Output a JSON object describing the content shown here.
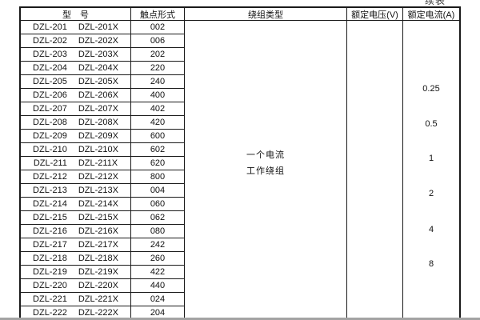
{
  "continued_label": "续表",
  "table": {
    "columns": [
      "型　号",
      "触点形式",
      "绕组类型",
      "额定电压(V)",
      "额定电流(A)"
    ],
    "winding_type_lines": [
      "一个电流",
      "工作绕组"
    ],
    "rated_voltage_value": "",
    "rated_current_values": [
      "0.25",
      "0.5",
      "1",
      "2",
      "4",
      "8"
    ],
    "rows": [
      {
        "model": "DZL-201",
        "model_x": "DZL-201X",
        "contact": "002"
      },
      {
        "model": "DZL-202",
        "model_x": "DZL-202X",
        "contact": "006"
      },
      {
        "model": "DZL-203",
        "model_x": "DZL-203X",
        "contact": "202"
      },
      {
        "model": "DZL-204",
        "model_x": "DZL-204X",
        "contact": "220"
      },
      {
        "model": "DZL-205",
        "model_x": "DZL-205X",
        "contact": "240"
      },
      {
        "model": "DZL-206",
        "model_x": "DZL-206X",
        "contact": "400"
      },
      {
        "model": "DZL-207",
        "model_x": "DZL-207X",
        "contact": "402"
      },
      {
        "model": "DZL-208",
        "model_x": "DZL-208X",
        "contact": "420"
      },
      {
        "model": "DZL-209",
        "model_x": "DZL-209X",
        "contact": "600"
      },
      {
        "model": "DZL-210",
        "model_x": "DZL-210X",
        "contact": "602"
      },
      {
        "model": "DZL-211",
        "model_x": "DZL-211X",
        "contact": "620"
      },
      {
        "model": "DZL-212",
        "model_x": "DZL-212X",
        "contact": "800"
      },
      {
        "model": "DZL-213",
        "model_x": "DZL-213X",
        "contact": "004"
      },
      {
        "model": "DZL-214",
        "model_x": "DZL-214X",
        "contact": "060"
      },
      {
        "model": "DZL-215",
        "model_x": "DZL-215X",
        "contact": "062"
      },
      {
        "model": "DZL-216",
        "model_x": "DZL-216X",
        "contact": "080"
      },
      {
        "model": "DZL-217",
        "model_x": "DZL-217X",
        "contact": "242"
      },
      {
        "model": "DZL-218",
        "model_x": "DZL-218X",
        "contact": "260"
      },
      {
        "model": "DZL-219",
        "model_x": "DZL-219X",
        "contact": "422"
      },
      {
        "model": "DZL-220",
        "model_x": "DZL-220X",
        "contact": "440"
      },
      {
        "model": "DZL-221",
        "model_x": "DZL-221X",
        "contact": "024"
      },
      {
        "model": "DZL-222",
        "model_x": "DZL-222X",
        "contact": "204"
      }
    ]
  }
}
